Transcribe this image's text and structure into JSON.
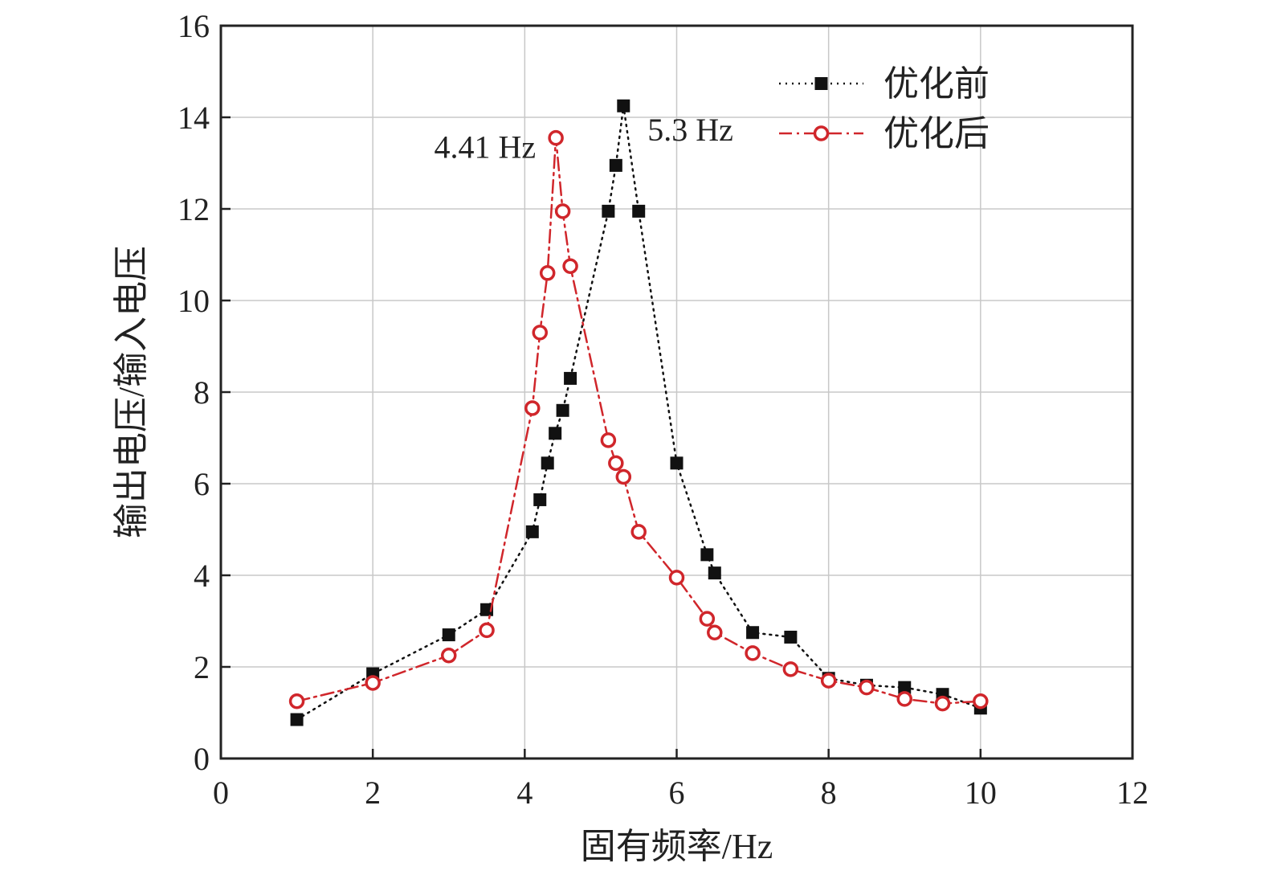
{
  "chart_data": {
    "type": "line",
    "xlabel": "固有频率/Hz",
    "ylabel": "输出电压/输入电压",
    "xlim": [
      0,
      12
    ],
    "ylim": [
      0,
      16
    ],
    "xticks": [
      0,
      2,
      4,
      6,
      8,
      10,
      12
    ],
    "yticks": [
      0,
      2,
      4,
      6,
      8,
      10,
      12,
      14,
      16
    ],
    "grid": true,
    "legend_position": "top-right",
    "series": [
      {
        "name": "优化前",
        "color": "#111111",
        "marker": "square",
        "line": "dotted",
        "x": [
          1,
          2,
          3,
          3.5,
          4.1,
          4.2,
          4.3,
          4.4,
          4.5,
          4.6,
          5.1,
          5.2,
          5.3,
          5.5,
          6,
          6.4,
          6.5,
          7,
          7.5,
          8,
          8.5,
          9,
          9.5,
          10
        ],
        "y": [
          0.85,
          1.85,
          2.7,
          3.25,
          4.95,
          5.65,
          6.45,
          7.1,
          7.6,
          8.3,
          11.95,
          12.95,
          14.25,
          11.95,
          6.45,
          4.45,
          4.05,
          2.75,
          2.65,
          1.75,
          1.6,
          1.55,
          1.4,
          1.1
        ]
      },
      {
        "name": "优化后",
        "color": "#d0262b",
        "marker": "circle",
        "line": "dashdot",
        "x": [
          1,
          2,
          3,
          3.5,
          4.1,
          4.2,
          4.3,
          4.41,
          4.5,
          4.6,
          5.1,
          5.2,
          5.3,
          5.5,
          6,
          6.4,
          6.5,
          7,
          7.5,
          8,
          8.5,
          9,
          9.5,
          10
        ],
        "y": [
          1.25,
          1.65,
          2.25,
          2.8,
          7.65,
          9.3,
          10.6,
          13.55,
          11.95,
          10.75,
          6.95,
          6.45,
          6.15,
          4.95,
          3.95,
          3.05,
          2.75,
          2.3,
          1.95,
          1.7,
          1.55,
          1.3,
          1.2,
          1.25
        ]
      }
    ],
    "annotations": [
      {
        "text": "4.41 Hz",
        "x": 4.41,
        "y": 13.55
      },
      {
        "text": "5.3 Hz",
        "x": 5.3,
        "y": 14.25
      }
    ]
  }
}
